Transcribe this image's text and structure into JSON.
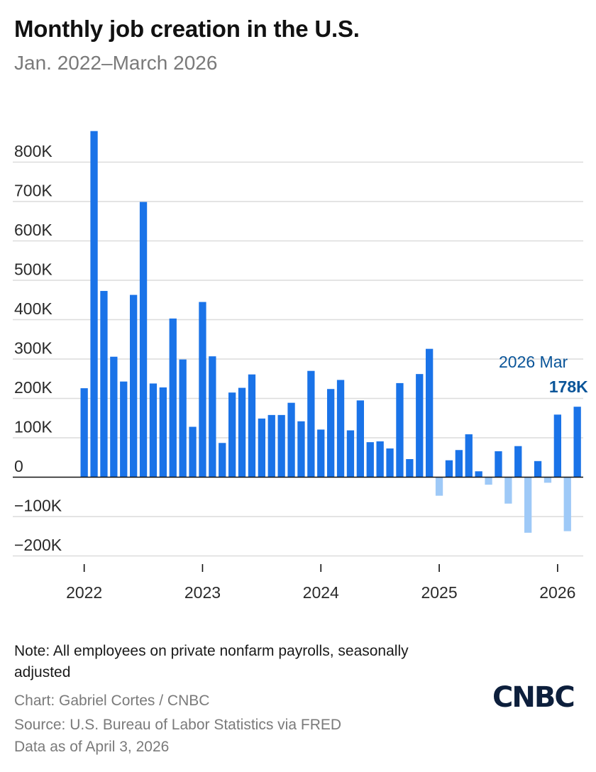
{
  "header": {
    "title": "Monthly job creation in the U.S.",
    "subtitle": "Jan. 2022–March 2026"
  },
  "chart_data": {
    "type": "bar",
    "title": "Monthly job creation in the U.S.",
    "subtitle": "Jan. 2022–March 2026",
    "xlabel": "",
    "ylabel": "",
    "ylim": [
      -200,
      850
    ],
    "y_ticks": [
      800,
      700,
      600,
      500,
      400,
      300,
      200,
      100,
      0,
      -100,
      -200
    ],
    "y_tick_labels": [
      "800K",
      "700K",
      "600K",
      "500K",
      "400K",
      "300K",
      "200K",
      "100K",
      "0",
      "−100K",
      "−200K"
    ],
    "x_tick_labels": [
      "2022",
      "2023",
      "2024",
      "2025",
      "2026"
    ],
    "units": "thousands of jobs",
    "colors": {
      "positive": "#1a73e8",
      "negative": "#9ec9f7",
      "axis": "#111111",
      "grid": "#dcdcdc",
      "callout": "#0a5599"
    },
    "categories": [
      "Jan 2022",
      "Feb 2022",
      "Mar 2022",
      "Apr 2022",
      "May 2022",
      "Jun 2022",
      "Jul 2022",
      "Aug 2022",
      "Sep 2022",
      "Oct 2022",
      "Nov 2022",
      "Dec 2022",
      "Jan 2023",
      "Feb 2023",
      "Mar 2023",
      "Apr 2023",
      "May 2023",
      "Jun 2023",
      "Jul 2023",
      "Aug 2023",
      "Sep 2023",
      "Oct 2023",
      "Nov 2023",
      "Dec 2023",
      "Jan 2024",
      "Feb 2024",
      "Mar 2024",
      "Apr 2024",
      "May 2024",
      "Jun 2024",
      "Jul 2024",
      "Aug 2024",
      "Sep 2024",
      "Oct 2024",
      "Nov 2024",
      "Dec 2024",
      "Jan 2025",
      "Feb 2025",
      "Mar 2025",
      "Apr 2025",
      "May 2025",
      "Jun 2025",
      "Jul 2025",
      "Aug 2025",
      "Sep 2025",
      "Oct 2025",
      "Nov 2025",
      "Dec 2025",
      "Jan 2026",
      "Feb 2026",
      "Mar 2026"
    ],
    "values": [
      225,
      878,
      472,
      305,
      242,
      462,
      698,
      237,
      227,
      402,
      298,
      127,
      444,
      306,
      86,
      214,
      226,
      260,
      148,
      157,
      157,
      188,
      141,
      269,
      120,
      223,
      246,
      118,
      194,
      88,
      90,
      72,
      238,
      45,
      261,
      325,
      -48,
      42,
      68,
      108,
      14,
      -20,
      65,
      -68,
      78,
      -142,
      40,
      -15,
      158,
      -138,
      178
    ],
    "callout": {
      "label": "2026 Mar",
      "value_label": "178K"
    }
  },
  "footer": {
    "note": "Note: All employees on private nonfarm payrolls, seasonally adjusted",
    "credit": "Chart: Gabriel Cortes / CNBC",
    "source": "Source: U.S. Bureau of Labor Statistics via FRED",
    "date": "Data as of April 3, 2026",
    "logo": "CNBC"
  }
}
